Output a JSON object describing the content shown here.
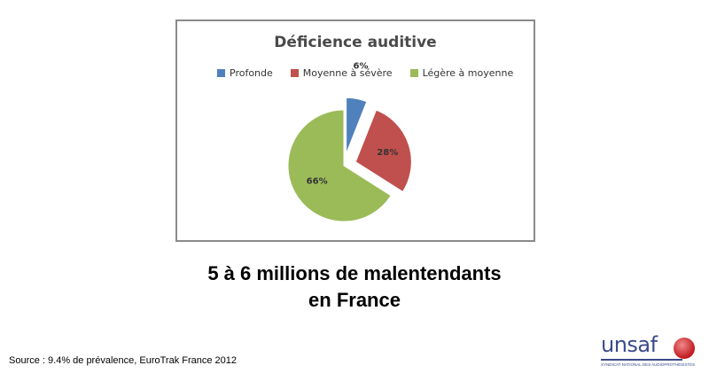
{
  "chart_data": {
    "type": "pie",
    "title": "Déficience auditive",
    "categories": [
      "Profonde",
      "Moyenne à sévère",
      "Légère à moyenne"
    ],
    "values": [
      6,
      28,
      66
    ],
    "data_labels": [
      "6%",
      "28%",
      "66%"
    ],
    "colors": [
      "#4f81bd",
      "#c0504d",
      "#9bbb59"
    ],
    "exploded": true,
    "legend_position": "top"
  },
  "headline": {
    "line1": "5 à 6 millions de malentendants",
    "line2": "en France"
  },
  "source": "Source : 9.4% de prévalence, EuroTrak France 2012",
  "logo": {
    "text": "unsaf",
    "subtitle": "SYNDICAT NATIONAL DES AUDIOPROTHÉSISTES"
  }
}
